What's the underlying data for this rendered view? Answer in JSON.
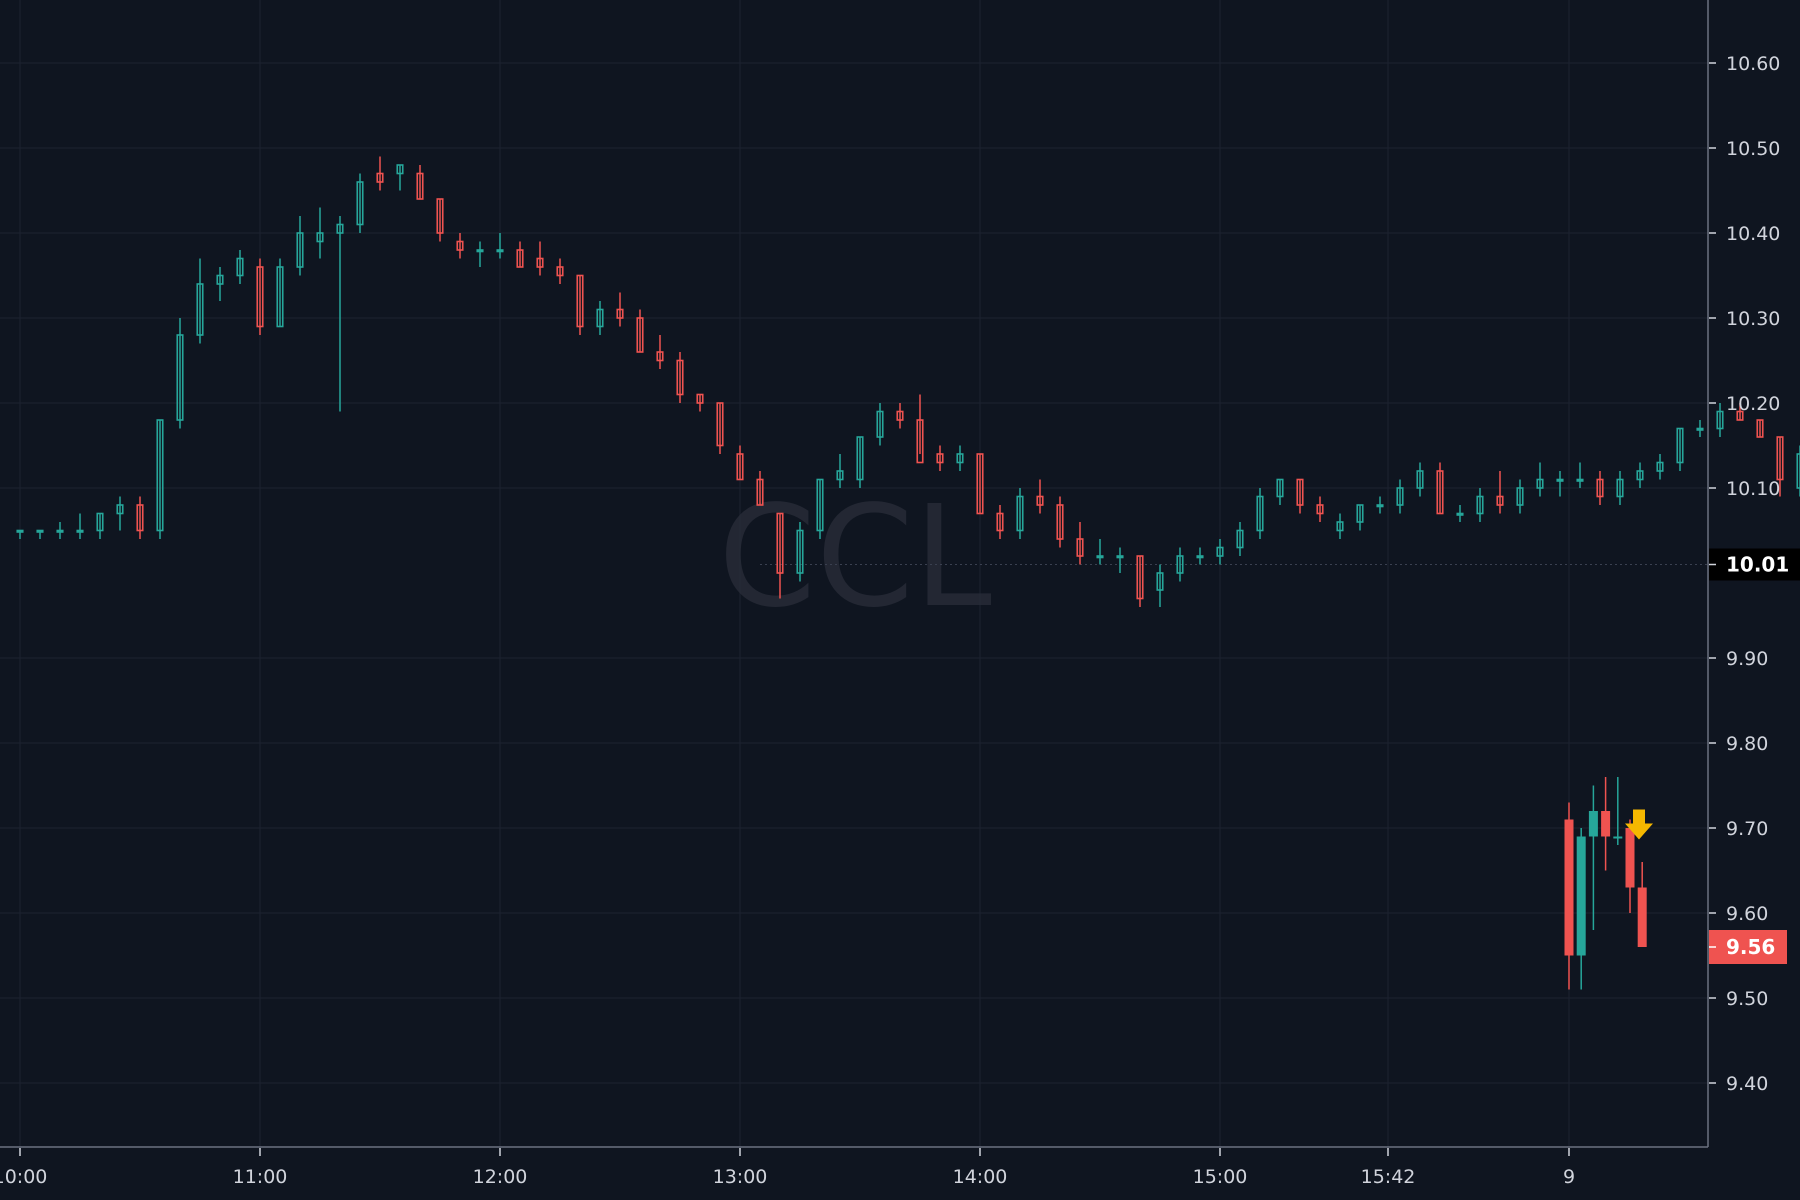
{
  "symbol_watermark": "CCL",
  "colors": {
    "background": "#0f1520",
    "grid": "#1c2230",
    "axis": "#6b7280",
    "up": "#26a69a",
    "down": "#ef5350",
    "text": "#d1d4dc",
    "last_price_tag_bg": "#000000",
    "current_price_tag_bg": "#ef5350",
    "marker": "#f5b800"
  },
  "chart_data": {
    "type": "candlestick",
    "title": "",
    "xlabel": "",
    "ylabel": "",
    "ylim": [
      9.32,
      10.67
    ],
    "y_ticks": [
      "10.60",
      "10.50",
      "10.40",
      "10.30",
      "10.20",
      "10.10",
      "9.90",
      "9.80",
      "9.70",
      "9.60",
      "9.50",
      "9.40"
    ],
    "y_tick_values": [
      10.6,
      10.5,
      10.4,
      10.3,
      10.2,
      10.1,
      9.9,
      9.8,
      9.7,
      9.6,
      9.5,
      9.4
    ],
    "x_ticks": [
      {
        "label": "10:00",
        "time": "10:00"
      },
      {
        "label": "11:00",
        "time": "11:00"
      },
      {
        "label": "12:00",
        "time": "12:00"
      },
      {
        "label": "13:00",
        "time": "13:00"
      },
      {
        "label": "14:00",
        "time": "14:00"
      },
      {
        "label": "15:00",
        "time": "15:00"
      },
      {
        "label": "15:42",
        "time": "15:42"
      },
      {
        "label": "9",
        "time": "day9"
      }
    ],
    "last_close_label": "10.01",
    "last_close": 10.01,
    "current_price_label": "9.56",
    "current_price": 9.56,
    "grid": true,
    "session1_candles": [
      [
        10.05,
        10.05,
        10.04,
        10.05
      ],
      [
        10.05,
        10.05,
        10.04,
        10.05
      ],
      [
        10.05,
        10.06,
        10.04,
        10.05
      ],
      [
        10.05,
        10.07,
        10.04,
        10.05
      ],
      [
        10.05,
        10.07,
        10.04,
        10.07
      ],
      [
        10.07,
        10.09,
        10.05,
        10.08
      ],
      [
        10.08,
        10.09,
        10.04,
        10.05
      ],
      [
        10.05,
        10.18,
        10.04,
        10.18
      ],
      [
        10.18,
        10.3,
        10.17,
        10.28
      ],
      [
        10.28,
        10.37,
        10.27,
        10.34
      ],
      [
        10.34,
        10.36,
        10.32,
        10.35
      ],
      [
        10.35,
        10.38,
        10.34,
        10.37
      ],
      [
        10.36,
        10.37,
        10.28,
        10.29
      ],
      [
        10.29,
        10.37,
        10.29,
        10.36
      ],
      [
        10.36,
        10.42,
        10.35,
        10.4
      ],
      [
        10.39,
        10.43,
        10.37,
        10.4
      ],
      [
        10.4,
        10.42,
        10.19,
        10.41
      ],
      [
        10.41,
        10.47,
        10.4,
        10.46
      ],
      [
        10.47,
        10.49,
        10.45,
        10.46
      ],
      [
        10.47,
        10.48,
        10.45,
        10.48
      ],
      [
        10.47,
        10.48,
        10.44,
        10.44
      ],
      [
        10.44,
        10.44,
        10.39,
        10.4
      ],
      [
        10.39,
        10.4,
        10.37,
        10.38
      ],
      [
        10.38,
        10.39,
        10.36,
        10.38
      ],
      [
        10.38,
        10.4,
        10.37,
        10.38
      ],
      [
        10.38,
        10.39,
        10.36,
        10.36
      ],
      [
        10.37,
        10.39,
        10.35,
        10.36
      ],
      [
        10.36,
        10.37,
        10.34,
        10.35
      ],
      [
        10.35,
        10.35,
        10.28,
        10.29
      ],
      [
        10.29,
        10.32,
        10.28,
        10.31
      ],
      [
        10.31,
        10.33,
        10.29,
        10.3
      ],
      [
        10.3,
        10.31,
        10.26,
        10.26
      ],
      [
        10.26,
        10.28,
        10.24,
        10.25
      ],
      [
        10.25,
        10.26,
        10.2,
        10.21
      ],
      [
        10.21,
        10.21,
        10.19,
        10.2
      ],
      [
        10.2,
        10.2,
        10.14,
        10.15
      ],
      [
        10.14,
        10.15,
        10.11,
        10.11
      ],
      [
        10.11,
        10.12,
        10.08,
        10.08
      ],
      [
        10.07,
        10.07,
        9.97,
        10.0
      ],
      [
        10.0,
        10.06,
        9.99,
        10.05
      ],
      [
        10.05,
        10.11,
        10.04,
        10.11
      ],
      [
        10.11,
        10.14,
        10.1,
        10.12
      ],
      [
        10.11,
        10.16,
        10.1,
        10.16
      ],
      [
        10.16,
        10.2,
        10.15,
        10.19
      ],
      [
        10.19,
        10.2,
        10.17,
        10.18
      ],
      [
        10.18,
        10.21,
        10.14,
        10.13
      ],
      [
        10.14,
        10.15,
        10.12,
        10.13
      ],
      [
        10.13,
        10.15,
        10.12,
        10.14
      ],
      [
        10.14,
        10.14,
        10.07,
        10.07
      ],
      [
        10.07,
        10.08,
        10.04,
        10.05
      ],
      [
        10.05,
        10.1,
        10.04,
        10.09
      ],
      [
        10.09,
        10.11,
        10.07,
        10.08
      ],
      [
        10.08,
        10.09,
        10.03,
        10.04
      ],
      [
        10.04,
        10.06,
        10.01,
        10.02
      ],
      [
        10.02,
        10.04,
        10.01,
        10.02
      ],
      [
        10.02,
        10.03,
        10.0,
        10.02
      ],
      [
        10.02,
        10.02,
        9.96,
        9.97
      ],
      [
        9.98,
        10.01,
        9.96,
        10.0
      ],
      [
        10.0,
        10.03,
        9.99,
        10.02
      ],
      [
        10.02,
        10.03,
        10.01,
        10.02
      ],
      [
        10.02,
        10.04,
        10.01,
        10.03
      ],
      [
        10.03,
        10.06,
        10.02,
        10.05
      ],
      [
        10.05,
        10.1,
        10.04,
        10.09
      ],
      [
        10.09,
        10.11,
        10.08,
        10.11
      ],
      [
        10.11,
        10.11,
        10.07,
        10.08
      ],
      [
        10.08,
        10.09,
        10.06,
        10.07
      ],
      [
        10.05,
        10.07,
        10.04,
        10.06
      ],
      [
        10.06,
        10.08,
        10.05,
        10.08
      ],
      [
        10.08,
        10.09,
        10.07,
        10.08
      ],
      [
        10.08,
        10.11,
        10.07,
        10.1
      ],
      [
        10.1,
        10.13,
        10.09,
        10.12
      ],
      [
        10.12,
        10.13,
        10.07,
        10.07
      ],
      [
        10.07,
        10.08,
        10.06,
        10.07
      ],
      [
        10.07,
        10.1,
        10.06,
        10.09
      ],
      [
        10.09,
        10.12,
        10.07,
        10.08
      ],
      [
        10.08,
        10.11,
        10.07,
        10.1
      ],
      [
        10.1,
        10.13,
        10.09,
        10.11
      ],
      [
        10.11,
        10.12,
        10.09,
        10.11
      ],
      [
        10.11,
        10.13,
        10.1,
        10.11
      ],
      [
        10.11,
        10.12,
        10.08,
        10.09
      ],
      [
        10.09,
        10.12,
        10.08,
        10.11
      ],
      [
        10.11,
        10.13,
        10.1,
        10.12
      ],
      [
        10.12,
        10.14,
        10.11,
        10.13
      ],
      [
        10.13,
        10.17,
        10.12,
        10.17
      ],
      [
        10.17,
        10.18,
        10.16,
        10.17
      ],
      [
        10.17,
        10.2,
        10.16,
        10.19
      ],
      [
        10.19,
        10.2,
        10.18,
        10.18
      ],
      [
        10.18,
        10.18,
        10.16,
        10.16
      ],
      [
        10.16,
        10.16,
        10.09,
        10.11
      ],
      [
        10.1,
        10.15,
        10.09,
        10.14
      ],
      [
        10.14,
        10.16,
        10.13,
        10.14
      ],
      [
        10.14,
        10.15,
        10.11,
        10.12
      ],
      [
        10.12,
        10.14,
        10.11,
        10.13
      ],
      [
        10.11,
        10.14,
        10.11,
        10.13
      ],
      [
        10.13,
        10.16,
        10.12,
        10.16
      ],
      [
        10.16,
        10.19,
        10.15,
        10.18
      ],
      [
        10.18,
        10.18,
        10.15,
        10.16
      ],
      [
        10.16,
        10.17,
        10.15,
        10.16
      ],
      [
        10.16,
        10.17,
        10.12,
        10.13
      ],
      [
        10.13,
        10.14,
        10.11,
        10.11
      ],
      [
        10.11,
        10.13,
        10.1,
        10.12
      ],
      [
        10.12,
        10.13,
        10.11,
        10.12
      ],
      [
        10.12,
        10.13,
        10.11,
        10.13
      ],
      [
        10.13,
        10.13,
        10.11,
        10.12
      ],
      [
        10.12,
        10.13,
        10.11,
        10.11
      ],
      [
        10.11,
        10.12,
        10.1,
        10.12
      ],
      [
        10.12,
        10.12,
        10.05,
        10.06
      ],
      [
        10.06,
        10.07,
        10.05,
        10.06
      ],
      [
        10.06,
        10.08,
        10.05,
        10.07
      ],
      [
        10.07,
        10.08,
        10.04,
        10.05
      ],
      [
        10.05,
        10.06,
        10.05,
        10.06
      ],
      [
        10.05,
        10.06,
        10.05,
        10.05
      ],
      [
        10.05,
        10.06,
        10.05,
        10.05
      ],
      [
        10.05,
        10.05,
        10.03,
        10.04
      ],
      [
        10.04,
        10.05,
        10.03,
        10.04
      ],
      [
        10.04,
        10.05,
        10.02,
        10.03
      ],
      [
        10.03,
        10.03,
        10.01,
        10.01
      ],
      [
        10.01,
        10.03,
        10.0,
        10.02
      ],
      [
        10.02,
        10.04,
        10.01,
        10.04
      ],
      [
        10.04,
        10.06,
        10.03,
        10.06
      ],
      [
        10.06,
        10.07,
        10.05,
        10.06
      ],
      [
        10.06,
        10.07,
        10.05,
        10.05
      ],
      [
        10.05,
        10.05,
        10.01,
        10.02
      ],
      [
        10.02,
        10.04,
        10.01,
        10.03
      ],
      [
        10.03,
        10.04,
        10.02,
        10.04
      ],
      [
        10.04,
        10.05,
        10.03,
        10.05
      ],
      [
        10.05,
        10.06,
        10.04,
        10.06
      ],
      [
        10.06,
        10.08,
        10.05,
        10.08
      ],
      [
        10.08,
        10.08,
        10.02,
        10.03
      ],
      [
        10.03,
        10.03,
        10.01,
        10.02
      ],
      [
        10.02,
        10.03,
        10.01,
        10.02
      ],
      [
        10.02,
        10.03,
        10.01,
        10.02
      ],
      [
        10.02,
        10.02,
        10.0,
        10.01
      ],
      [
        10.01,
        10.02,
        9.99,
        10.01
      ]
    ],
    "session2_candles": [
      [
        9.71,
        9.73,
        9.51,
        9.55
      ],
      [
        9.55,
        9.7,
        9.51,
        9.69
      ],
      [
        9.69,
        9.75,
        9.58,
        9.72
      ],
      [
        9.72,
        9.76,
        9.65,
        9.69
      ],
      [
        9.69,
        9.76,
        9.68,
        9.69
      ],
      [
        9.7,
        9.71,
        9.6,
        9.63
      ],
      [
        9.63,
        9.66,
        9.56,
        9.56
      ]
    ],
    "signal_marker": {
      "type": "sell-arrow",
      "session": 2,
      "candle_index": 5
    }
  }
}
